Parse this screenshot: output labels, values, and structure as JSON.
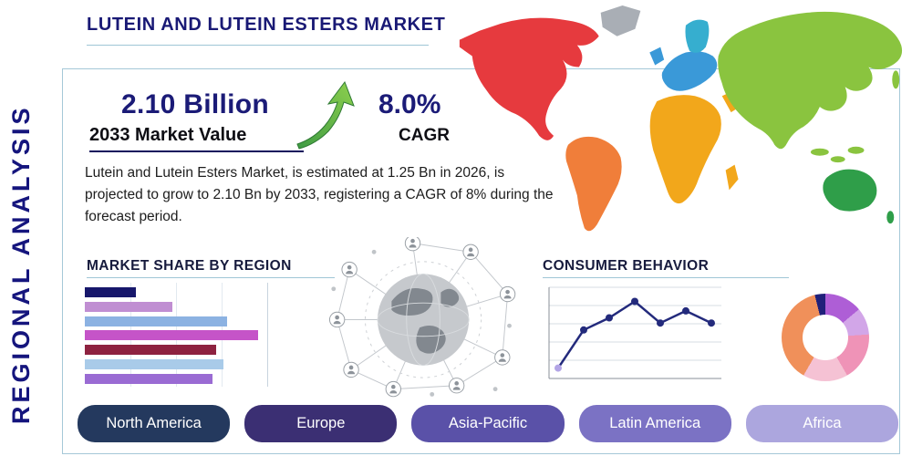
{
  "page": {
    "title": "LUTEIN AND LUTEIN ESTERS MARKET",
    "side_label": "REGIONAL ANALYSIS"
  },
  "stats": {
    "value": "2.10 Billion",
    "value_label": "2033 Market Value",
    "cagr": "8.0%",
    "cagr_label": "CAGR"
  },
  "description": "Lutein and Lutein Esters Market, is estimated at 1.25 Bn in 2026, is projected to grow to 2.10 Bn by 2033, registering a CAGR of 8% during the forecast period.",
  "sections": {
    "market_share": "MARKET SHARE BY REGION",
    "consumer_behavior": "CONSUMER BEHAVIOR"
  },
  "region_buttons": [
    {
      "label": "North America",
      "color": "#24395e"
    },
    {
      "label": "Europe",
      "color": "#3b2f73"
    },
    {
      "label": "Asia-Pacific",
      "color": "#5a51a8"
    },
    {
      "label": "Latin America",
      "color": "#7b72c4"
    },
    {
      "label": "Africa",
      "color": "#aca6de"
    }
  ],
  "map_colors": {
    "north_america": "#e63a3e",
    "greenland": "#a9aeb5",
    "south_america": "#f07e3a",
    "europe": "#3a99d8",
    "scandinavia": "#36aecf",
    "africa": "#f2a71b",
    "middle_east": "#f2a71b",
    "asia": "#8ac43f",
    "australia": "#2f9e49"
  },
  "chart_data": [
    {
      "type": "bar",
      "title": "MARKET SHARE BY REGION",
      "orientation": "horizontal",
      "values": [
        28,
        48,
        78,
        95,
        72,
        76,
        70
      ],
      "unit": "percent_of_max",
      "colors": [
        "#17176b",
        "#c08ed2",
        "#8cb2e2",
        "#c554c8",
        "#8e2240",
        "#a9cbe9",
        "#9a6bd3"
      ]
    },
    {
      "type": "line",
      "title": "CONSUMER BEHAVIOR",
      "x": [
        1,
        2,
        3,
        4,
        5,
        6,
        7
      ],
      "y": [
        12,
        56,
        70,
        89,
        64,
        78,
        64
      ],
      "ylim": [
        0,
        100
      ],
      "grid": true,
      "color": "#232a7c",
      "first_point_color": "#b3a5e6"
    },
    {
      "type": "pie",
      "slices": [
        {
          "color": "#ae5ed6",
          "value": 13.9
        },
        {
          "color": "#d2a6e8",
          "value": 10.0
        },
        {
          "color": "#ef93b7",
          "value": 17.8
        },
        {
          "color": "#f5c2d4",
          "value": 16.6
        },
        {
          "color": "#f0905a",
          "value": 37.8
        },
        {
          "color": "#20207a",
          "value": 3.9
        }
      ]
    }
  ]
}
